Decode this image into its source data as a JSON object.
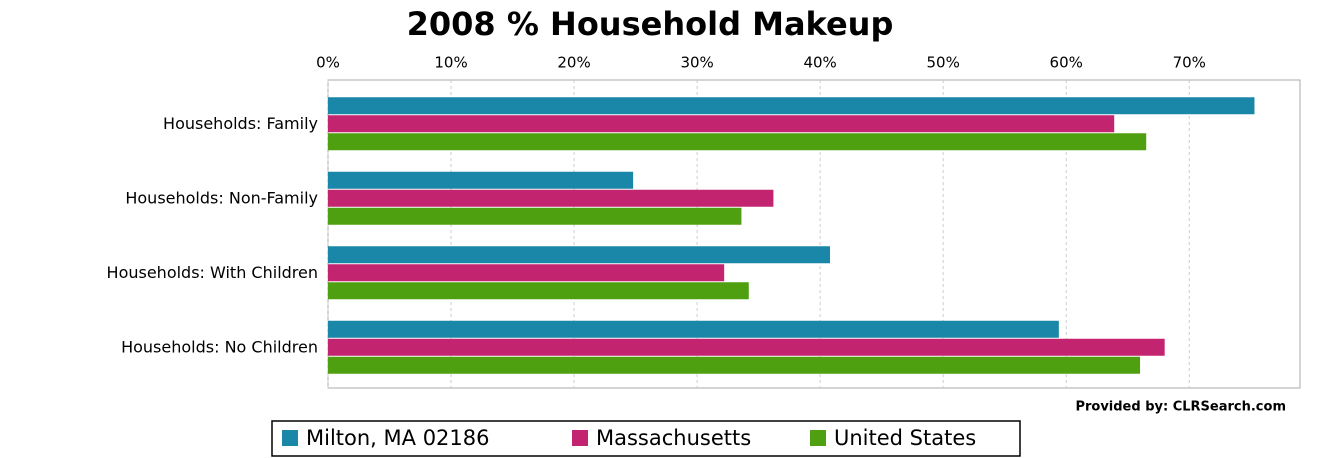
{
  "chart_data": {
    "type": "hbar",
    "title": "2008 % Household Makeup",
    "categories": [
      "Households: Family",
      "Households: Non-Family",
      "Households: With Children",
      "Households: No Children"
    ],
    "series": [
      {
        "name": "Milton, MA 02186",
        "color": "#1a87a8",
        "values": [
          75.3,
          24.8,
          40.8,
          59.4
        ]
      },
      {
        "name": "Massachusetts",
        "color": "#c2246f",
        "values": [
          63.9,
          36.2,
          32.2,
          68.0
        ]
      },
      {
        "name": "United States",
        "color": "#4fa010",
        "values": [
          66.5,
          33.6,
          34.2,
          66.0
        ]
      }
    ],
    "xlim": [
      0,
      79
    ],
    "xticks": [
      {
        "value": 0,
        "label": "0%"
      },
      {
        "value": 10,
        "label": "10%"
      },
      {
        "value": 20,
        "label": "20%"
      },
      {
        "value": 30,
        "label": "30%"
      },
      {
        "value": 40,
        "label": "40%"
      },
      {
        "value": 50,
        "label": "50%"
      },
      {
        "value": 60,
        "label": "60%"
      },
      {
        "value": 70,
        "label": "70%"
      }
    ],
    "grid": true,
    "legend": "bottom",
    "source": "Provided by: CLRSearch.com"
  }
}
